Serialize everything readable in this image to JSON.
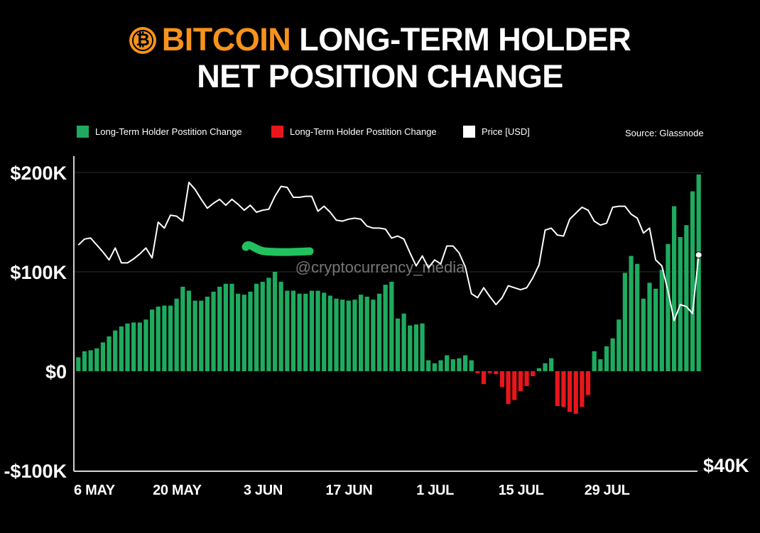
{
  "title": {
    "logo_glyph": "₿",
    "accent_word": "BITCOIN",
    "line1_rest": " LONG-TERM HOLDER",
    "line2": "NET POSITION CHANGE"
  },
  "legend": [
    {
      "label": "Long-Term Holder Postition Change",
      "color": "#1faa5f"
    },
    {
      "label": "Long-Term Holder Postition Change",
      "color": "#e8161b"
    },
    {
      "label": "Price [USD]",
      "color": "#ffffff"
    }
  ],
  "source": "Source: Glassnode",
  "watermark": "@cryptocurrency_media",
  "chart_data": {
    "type": "bar",
    "title": "BITCOIN LONG-TERM HOLDER NET POSITION CHANGE",
    "xlabel": "",
    "ylabel": "",
    "ylim": [
      -100000,
      200000
    ],
    "y_tick_labels": [
      "$200K",
      "$100K",
      "$0",
      "-$100K"
    ],
    "y_tick_values": [
      200000,
      100000,
      0,
      -100000
    ],
    "right_axis_label": "$40K",
    "x_tick_labels": [
      "6 MAY",
      "20 MAY",
      "3 JUN",
      "17 JUN",
      "1 JUL",
      "15 JUL",
      "29 JUL"
    ],
    "x_tick_index": [
      0,
      14,
      28,
      42,
      56,
      70,
      84
    ],
    "positive_color": "#1faa5f",
    "negative_color": "#e8161b",
    "price_color": "#ffffff",
    "series": [
      {
        "name": "Long-Term Holder Postition Change",
        "values": [
          14000,
          20000,
          21000,
          23000,
          29000,
          35000,
          41000,
          45000,
          48000,
          49000,
          49000,
          52000,
          62000,
          65000,
          66000,
          66000,
          73000,
          85000,
          81000,
          71000,
          71000,
          75000,
          80000,
          85000,
          88000,
          88000,
          78000,
          77000,
          80000,
          88000,
          90000,
          94000,
          100000,
          90000,
          81000,
          81000,
          78000,
          78000,
          81000,
          81000,
          79000,
          76000,
          73000,
          72000,
          71000,
          72000,
          77000,
          75000,
          72000,
          78000,
          87000,
          90000,
          53000,
          58000,
          46000,
          47000,
          48000,
          11000,
          8000,
          11000,
          16000,
          12000,
          13000,
          16000,
          11000,
          -2000,
          -13000,
          -2000,
          -3000,
          -16000,
          -33000,
          -29000,
          -20000,
          -15000,
          -5000,
          3000,
          8000,
          13000,
          -35000,
          -36000,
          -41000,
          -43000,
          -36000,
          -24000,
          20000,
          12000,
          25000,
          33000,
          52000,
          99000,
          116000,
          108000,
          73000,
          89000,
          83000,
          102000,
          128000,
          166000,
          135000,
          147000,
          181000,
          198000
        ]
      },
      {
        "name": "Price [USD]",
        "values": [
          127000,
          133000,
          134000,
          127000,
          120000,
          112000,
          124000,
          109000,
          109000,
          113000,
          118000,
          124000,
          114000,
          150000,
          144000,
          157000,
          156000,
          151000,
          190000,
          183000,
          173000,
          164000,
          169000,
          173000,
          167000,
          173000,
          168000,
          162000,
          167000,
          160000,
          162000,
          163000,
          176000,
          186000,
          185000,
          175000,
          175000,
          176000,
          176000,
          161000,
          166000,
          160000,
          152000,
          151000,
          153000,
          154000,
          153000,
          146000,
          144000,
          144000,
          143000,
          134000,
          136000,
          133000,
          119000,
          106000,
          116000,
          104000,
          112000,
          108000,
          126000,
          126000,
          119000,
          105000,
          78000,
          74000,
          84000,
          75000,
          67000,
          74000,
          86000,
          84000,
          82000,
          84000,
          94000,
          107000,
          142000,
          144000,
          137000,
          136000,
          153000,
          159000,
          165000,
          162000,
          151000,
          147000,
          149000,
          165000,
          166000,
          166000,
          158000,
          154000,
          139000,
          144000,
          112000,
          106000,
          81000,
          51000,
          67000,
          65000,
          58000,
          117000
        ]
      }
    ]
  }
}
